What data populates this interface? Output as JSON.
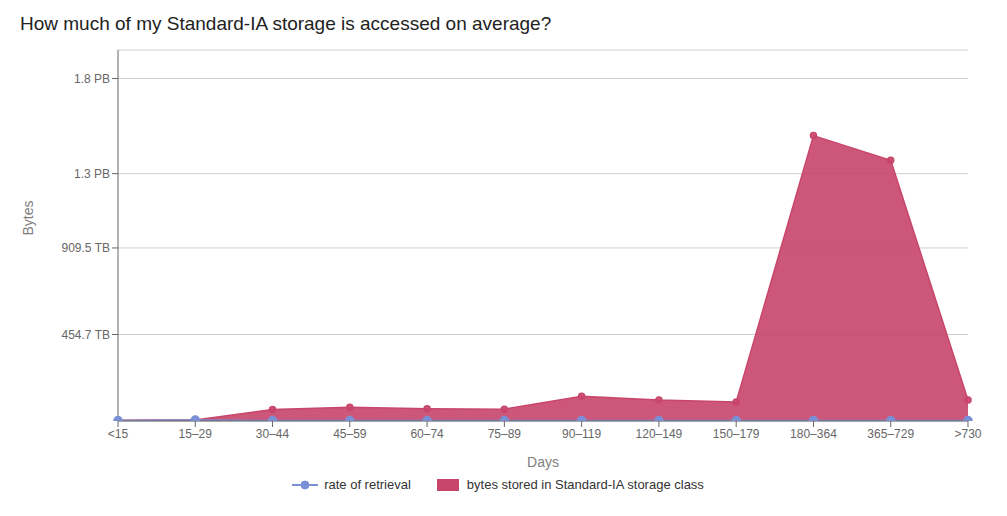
{
  "chart_data": {
    "type": "line",
    "title": "How much of my Standard-IA storage is accessed on average?",
    "xlabel": "Days",
    "ylabel": "Bytes",
    "categories": [
      "<15",
      "15–29",
      "30–44",
      "45–59",
      "60–74",
      "75–89",
      "90–119",
      "120–149",
      "150–179",
      "180–364",
      "365–729",
      ">730"
    ],
    "series": [
      {
        "name": "rate of retrieval",
        "type": "line",
        "color": "#7b8fd4",
        "marker": "circle",
        "values": [
          2.0,
          5.0,
          2.0,
          2.0,
          2.0,
          2.0,
          2.0,
          2.0,
          2.0,
          2.0,
          2.0,
          2.0
        ]
      },
      {
        "name": "bytes stored in Standard-IA storage class",
        "type": "area",
        "color": "#c8456b",
        "marker": "circle",
        "values": [
          2.0,
          5.0,
          60.0,
          72.0,
          65.0,
          62.0,
          130.0,
          110.0,
          100.0,
          1500.0,
          1370.0,
          110.0
        ]
      }
    ],
    "ylim": [
      0,
      1950
    ],
    "yticks": [
      {
        "value": 454.7,
        "label": "454.7 TB"
      },
      {
        "value": 909.5,
        "label": "909.5 TB"
      },
      {
        "value": 1300.0,
        "label": "1.3 PB"
      },
      {
        "value": 1800.0,
        "label": "1.8 PB"
      }
    ],
    "grid": true,
    "legend": "bottom"
  }
}
